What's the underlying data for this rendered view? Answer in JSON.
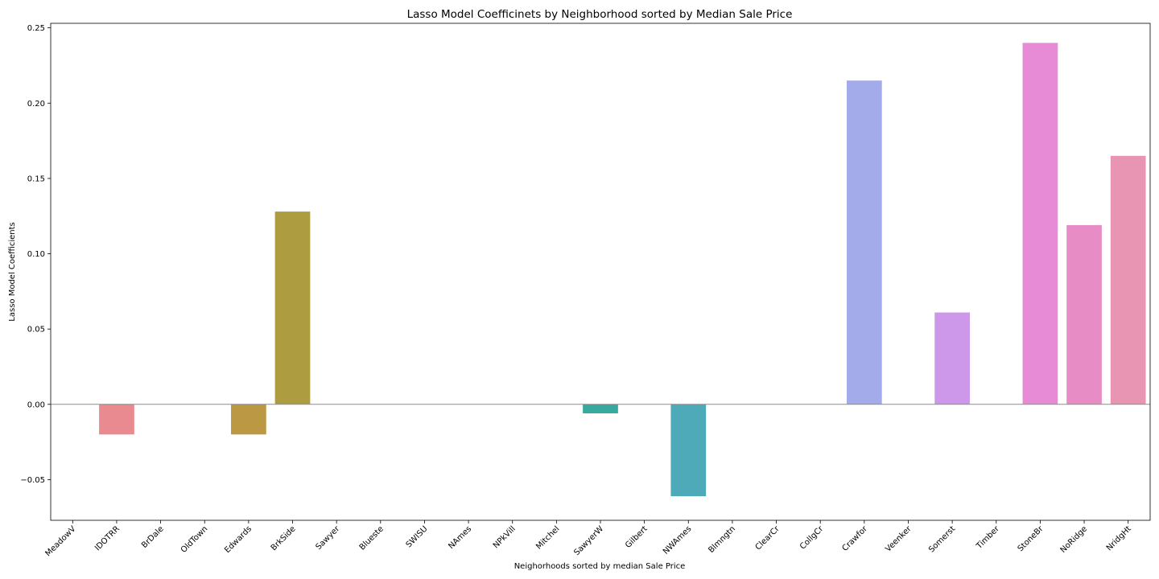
{
  "chart_data": {
    "type": "bar",
    "title": "Lasso Model Coefficinets by Neighborhood sorted by Median Sale Price",
    "xlabel": "Neighorhoods sorted by median Sale Price",
    "ylabel": "Lasso Model Coefficients",
    "ylim": [
      -0.077,
      0.253
    ],
    "yticks": [
      -0.05,
      0.0,
      0.05,
      0.1,
      0.15,
      0.2,
      0.25
    ],
    "ytick_labels": [
      "−0.05",
      "0.00",
      "0.05",
      "0.10",
      "0.15",
      "0.20",
      "0.25"
    ],
    "grid": false,
    "zero_line": true,
    "categories": [
      "MeadowV",
      "IDOTRR",
      "BrDale",
      "OldTown",
      "Edwards",
      "BrkSide",
      "Sawyer",
      "Blueste",
      "SWISU",
      "NAmes",
      "NPkVill",
      "Mitchel",
      "SawyerW",
      "Gilbert",
      "NWAmes",
      "Blmngtn",
      "ClearCr",
      "CollgCr",
      "Crawfor",
      "Veenker",
      "Somerst",
      "Timber",
      "StoneBr",
      "NoRidge",
      "NridgHt"
    ],
    "values": [
      0.0,
      -0.02,
      0.0,
      0.0,
      -0.02,
      0.128,
      0.0,
      0.0,
      0.0,
      0.0,
      0.0,
      0.0,
      -0.006,
      0.0,
      -0.061,
      0.0,
      0.0,
      0.0,
      0.215,
      0.0,
      0.061,
      0.0,
      0.24,
      0.119,
      0.165
    ],
    "colors": [
      "#f77189",
      "#e98a90",
      "#dc8932",
      "#c69b3a",
      "#bb9843",
      "#ae9d40",
      "#97a431",
      "#7fa931",
      "#50b131",
      "#34af63",
      "#36ad8a",
      "#37ab9a",
      "#38aa9d",
      "#39a8a8",
      "#4ea9b8",
      "#3ba3ec",
      "#6e9bf4",
      "#8f94ef",
      "#a4abea",
      "#c985ee",
      "#ce98ea",
      "#e46ddd",
      "#e78bd6",
      "#e78cc5",
      "#e895b4"
    ]
  }
}
